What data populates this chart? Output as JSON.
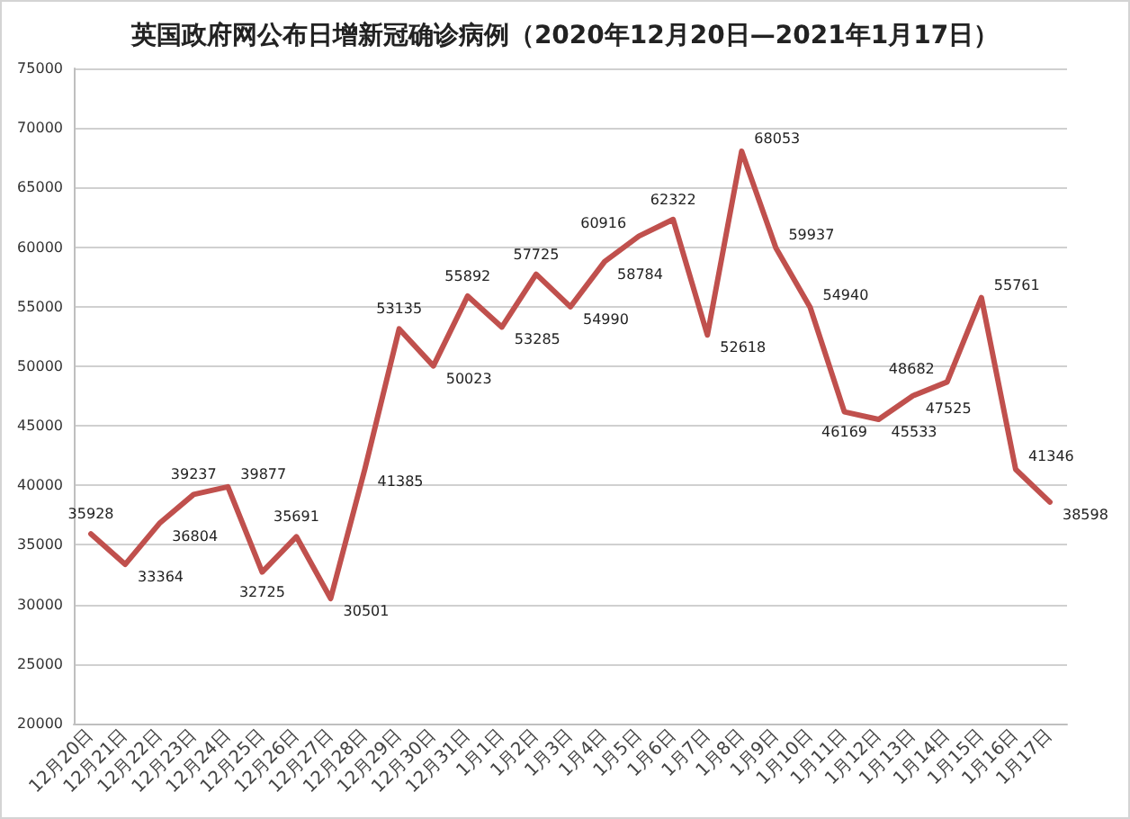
{
  "chart_data": {
    "type": "line",
    "title": "英国政府网公布日增新冠确诊病例（2020年12月20日—2021年1月17日）",
    "categories": [
      "12月20日",
      "12月21日",
      "12月22日",
      "12月23日",
      "12月24日",
      "12月25日",
      "12月26日",
      "12月27日",
      "12月28日",
      "12月29日",
      "12月30日",
      "12月31日",
      "1月1日",
      "1月2日",
      "1月3日",
      "1月4日",
      "1月5日",
      "1月6日",
      "1月7日",
      "1月8日",
      "1月9日",
      "1月10日",
      "1月11日",
      "1月12日",
      "1月13日",
      "1月14日",
      "1月15日",
      "1月16日",
      "1月17日"
    ],
    "series": [
      {
        "color": "#c0504d",
        "values": [
          35928,
          33364,
          36804,
          39237,
          39877,
          32725,
          35691,
          30501,
          41385,
          53135,
          50023,
          55892,
          53285,
          57725,
          54990,
          58784,
          60916,
          62322,
          52618,
          68053,
          59937,
          54940,
          46169,
          45533,
          47525,
          48682,
          55761,
          41346,
          38598
        ]
      }
    ],
    "ylim": [
      20000,
      75000
    ],
    "yticks": [
      20000,
      25000,
      30000,
      35000,
      40000,
      45000,
      50000,
      55000,
      60000,
      65000,
      70000,
      75000
    ],
    "grid": "y",
    "data_labels": true
  }
}
